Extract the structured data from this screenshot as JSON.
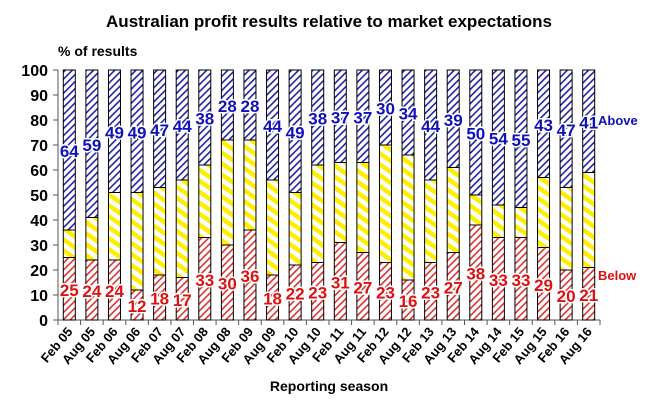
{
  "chart_data": {
    "type": "bar",
    "stacked": true,
    "title": "Australian profit results relative to market expectations",
    "ylabel": "% of results",
    "xlabel": "Reporting season",
    "ylim": [
      0,
      100
    ],
    "yticks": [
      0,
      10,
      20,
      30,
      40,
      50,
      60,
      70,
      80,
      90,
      100
    ],
    "grid": false,
    "categories": [
      "Feb 05",
      "Aug 05",
      "Feb 06",
      "Aug 06",
      "Feb 07",
      "Aug 07",
      "Feb 08",
      "Aug 08",
      "Feb 09",
      "Aug 09",
      "Feb 10",
      "Aug 10",
      "Feb 11",
      "Aug 11",
      "Feb 12",
      "Aug 12",
      "Feb 13",
      "Aug 13",
      "Feb 14",
      "Aug 14",
      "Feb 15",
      "Aug 15",
      "Feb 16",
      "Aug 16"
    ],
    "series": [
      {
        "name": "Below",
        "color": "#dd2222",
        "values": [
          25,
          24,
          24,
          12,
          18,
          17,
          33,
          30,
          36,
          18,
          22,
          23,
          31,
          27,
          23,
          16,
          23,
          27,
          38,
          33,
          33,
          29,
          20,
          21
        ]
      },
      {
        "color": "#ffff00",
        "values": [
          11,
          17,
          27,
          39,
          35,
          39,
          29,
          42,
          36,
          38,
          29,
          39,
          32,
          36,
          47,
          50,
          33,
          34,
          12,
          13,
          12,
          28,
          33,
          38
        ]
      },
      {
        "name": "Above",
        "color": "#1a1aaa",
        "values": [
          64,
          59,
          49,
          49,
          47,
          44,
          38,
          28,
          28,
          44,
          49,
          38,
          37,
          37,
          30,
          34,
          44,
          39,
          50,
          54,
          55,
          43,
          47,
          41
        ]
      }
    ],
    "legend": "right, inline series labels"
  }
}
